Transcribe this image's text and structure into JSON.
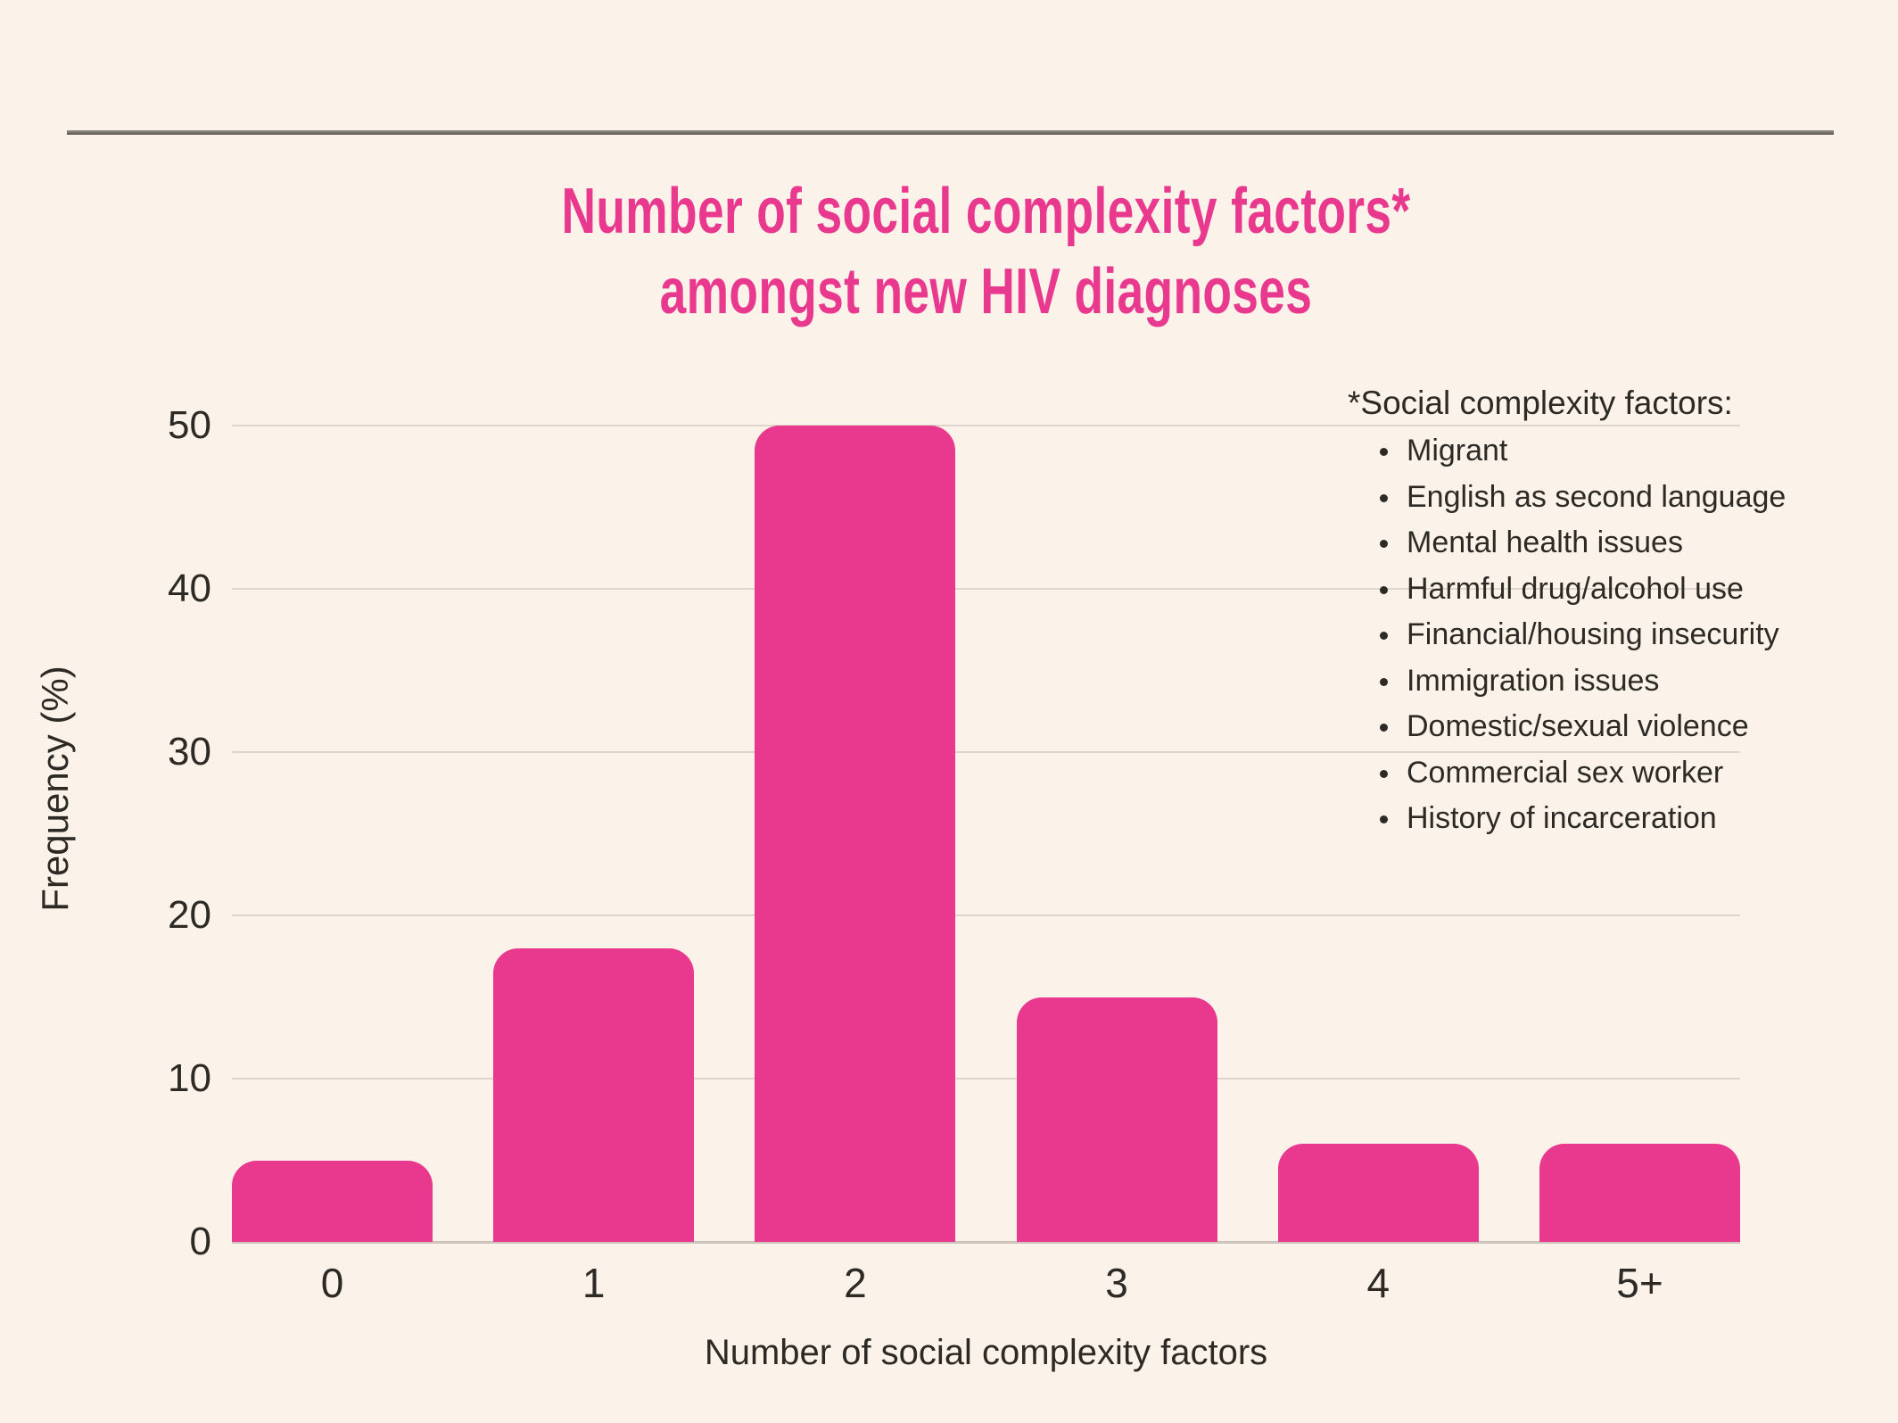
{
  "page": {
    "background_color": "#FBF3E9",
    "accent_pink": "#E8398F",
    "text_color": "#2D2A26",
    "gridline_color": "#DDD6CB",
    "divider_color": "#6e6a63"
  },
  "chart_data": {
    "type": "bar",
    "title": "Number of social complexity factors* amongst new HIV diagnoses",
    "title_lines": [
      "Number of social complexity factors*",
      "amongst new HIV diagnoses"
    ],
    "categories": [
      "0",
      "1",
      "2",
      "3",
      "4",
      "5+"
    ],
    "values": [
      5,
      18,
      50,
      15,
      6,
      6
    ],
    "xlabel": "Number of social complexity factors",
    "ylabel": "Frequency (%)",
    "ylim": [
      0,
      50
    ],
    "yticks": [
      0,
      10,
      20,
      30,
      40,
      50
    ],
    "grid": true,
    "legend_position": "none",
    "bar_color": "#E8398F"
  },
  "annotation": {
    "heading": "*Social complexity factors:",
    "items": [
      "Migrant",
      "English as second language",
      "Mental health issues",
      "Harmful drug/alcohol use",
      "Financial/housing insecurity",
      "Immigration issues",
      "Domestic/sexual violence",
      "Commercial sex worker",
      "History of incarceration"
    ]
  }
}
